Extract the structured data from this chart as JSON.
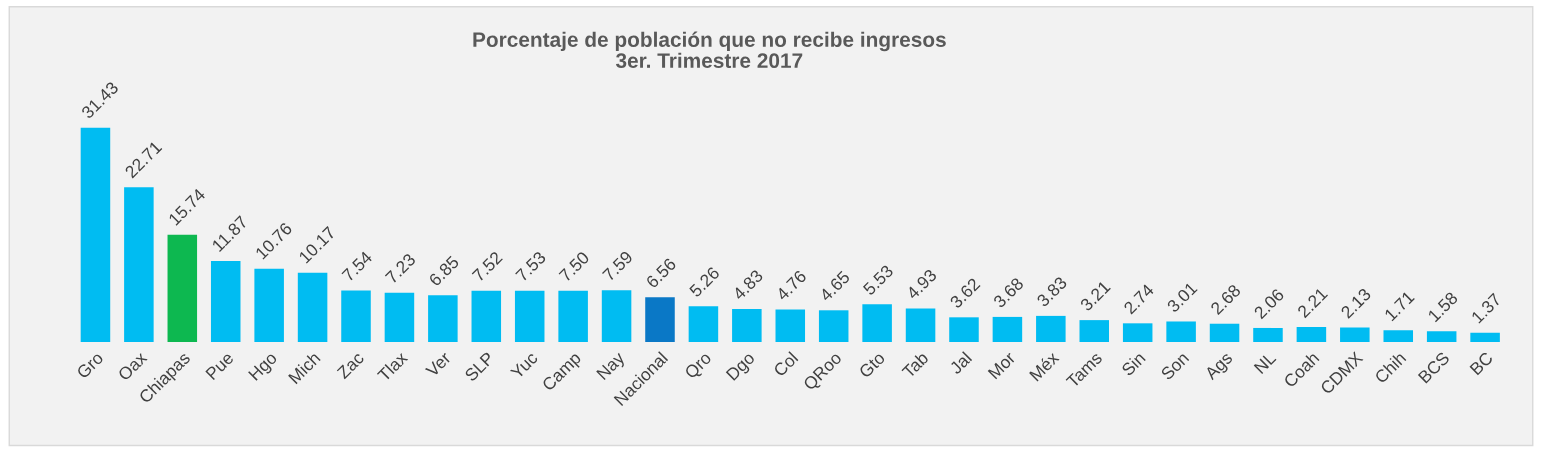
{
  "chart_data": {
    "type": "bar",
    "title": "Porcentaje de población que no recibe ingresos\n3er. Trimestre 2017",
    "categories": [
      "Gro",
      "Oax",
      "Chiapas",
      "Pue",
      "Hgo",
      "Mich",
      "Zac",
      "Tlax",
      "Ver",
      "SLP",
      "Yuc",
      "Camp",
      "Nay",
      "Nacional",
      "Qro",
      "Dgo",
      "Col",
      "QRoo",
      "Gto",
      "Tab",
      "Jal",
      "Mor",
      "Méx",
      "Tams",
      "Sin",
      "Son",
      "Ags",
      "NL",
      "Coah",
      "CDMX",
      "Chih",
      "BCS",
      "BC"
    ],
    "values": [
      31.43,
      22.71,
      15.74,
      11.87,
      10.76,
      10.17,
      7.54,
      7.23,
      6.85,
      7.52,
      7.53,
      7.5,
      7.59,
      6.56,
      5.26,
      4.83,
      4.76,
      4.65,
      5.53,
      4.93,
      3.62,
      3.68,
      3.83,
      3.21,
      2.74,
      3.01,
      2.68,
      2.06,
      2.21,
      2.13,
      1.71,
      1.58,
      1.37
    ],
    "value_labels": [
      "31.43",
      "22.71",
      "15.74",
      "11.87",
      "10.76",
      "10.17",
      "7.54",
      "7.23",
      "6.85",
      "7.52",
      "7.53",
      "7.50",
      "7.59",
      "6.56",
      "5.26",
      "4.83",
      "4.76",
      "4.65",
      "5.53",
      "4.93",
      "3.62",
      "3.68",
      "3.83",
      "3.21",
      "2.74",
      "3.01",
      "2.68",
      "2.06",
      "2.21",
      "2.13",
      "1.71",
      "1.58",
      "1.37"
    ],
    "colors": [
      "#00bcf2",
      "#00bcf2",
      "#0db850",
      "#00bcf2",
      "#00bcf2",
      "#00bcf2",
      "#00bcf2",
      "#00bcf2",
      "#00bcf2",
      "#00bcf2",
      "#00bcf2",
      "#00bcf2",
      "#00bcf2",
      "#0a78c6",
      "#00bcf2",
      "#00bcf2",
      "#00bcf2",
      "#00bcf2",
      "#00bcf2",
      "#00bcf2",
      "#00bcf2",
      "#00bcf2",
      "#00bcf2",
      "#00bcf2",
      "#00bcf2",
      "#00bcf2",
      "#00bcf2",
      "#00bcf2",
      "#00bcf2",
      "#00bcf2",
      "#00bcf2",
      "#00bcf2",
      "#00bcf2"
    ],
    "grid": false,
    "legend": false
  }
}
